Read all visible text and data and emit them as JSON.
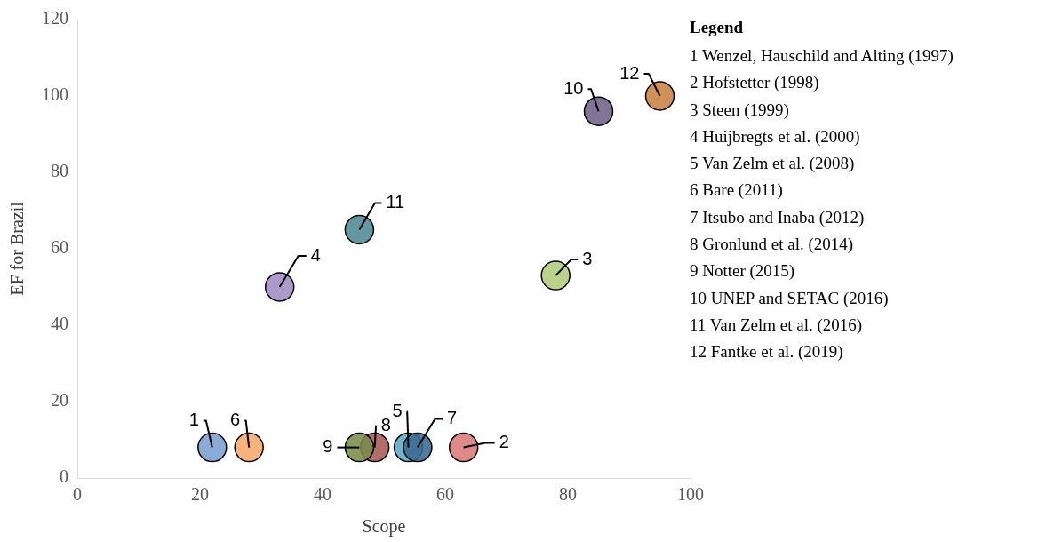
{
  "chart_data": {
    "type": "scatter",
    "xlabel": "Scope",
    "ylabel": "EF for Brazil",
    "legend_title": "Legend",
    "x": [
      22,
      63,
      78,
      33,
      54,
      28,
      55.5,
      48.5,
      46,
      85,
      46,
      95
    ],
    "values": [
      8,
      8,
      53,
      50,
      8,
      8,
      8,
      8,
      8,
      96,
      65,
      100
    ],
    "colors": [
      "#7a9fd0",
      "#d87a78",
      "#b0cc7a",
      "#a08cc4",
      "#5aaac8",
      "#f5a86a",
      "#3a6a90",
      "#a85a55",
      "#7a8c4a",
      "#6e6285",
      "#4f8a94",
      "#c8823e"
    ],
    "marker": "circle",
    "grid": false,
    "xlim": [
      0,
      100
    ],
    "xticks": [
      0,
      20,
      40,
      60,
      80,
      100
    ],
    "ylim": [
      0,
      120
    ],
    "yticks": [
      0,
      20,
      40,
      60,
      80,
      100,
      120
    ],
    "annotations": [
      {
        "text": "1",
        "x": 22,
        "y": 8
      },
      {
        "text": "2",
        "x": 63,
        "y": 8
      },
      {
        "text": "3",
        "x": 78,
        "y": 53
      },
      {
        "text": "4",
        "x": 33,
        "y": 50
      },
      {
        "text": "5",
        "x": 54,
        "y": 8
      },
      {
        "text": "6",
        "x": 28,
        "y": 8
      },
      {
        "text": "7",
        "x": 55.5,
        "y": 8
      },
      {
        "text": "8",
        "x": 48.5,
        "y": 8
      },
      {
        "text": "9",
        "x": 46,
        "y": 8
      },
      {
        "text": "10",
        "x": 85,
        "y": 96
      },
      {
        "text": "11",
        "x": 46,
        "y": 65
      },
      {
        "text": "12",
        "x": 95,
        "y": 100
      },
      "1 Wenzel, Hauschild and Alting (1997)",
      "2 Hofstetter (1998)",
      "3 Steen (1999)",
      "4 Huijbregts et al. (2000)",
      "5 Van Zelm et al. (2008)",
      "6 Bare (2011)",
      "7 Itsubo and Inaba (2012)",
      "8 Gronlund et al. (2014)",
      "9 Notter (2015)",
      "10 UNEP and SETAC (2016)",
      "11 Van Zelm et al. (2016)",
      "12 Fantke et al. (2019)"
    ]
  }
}
